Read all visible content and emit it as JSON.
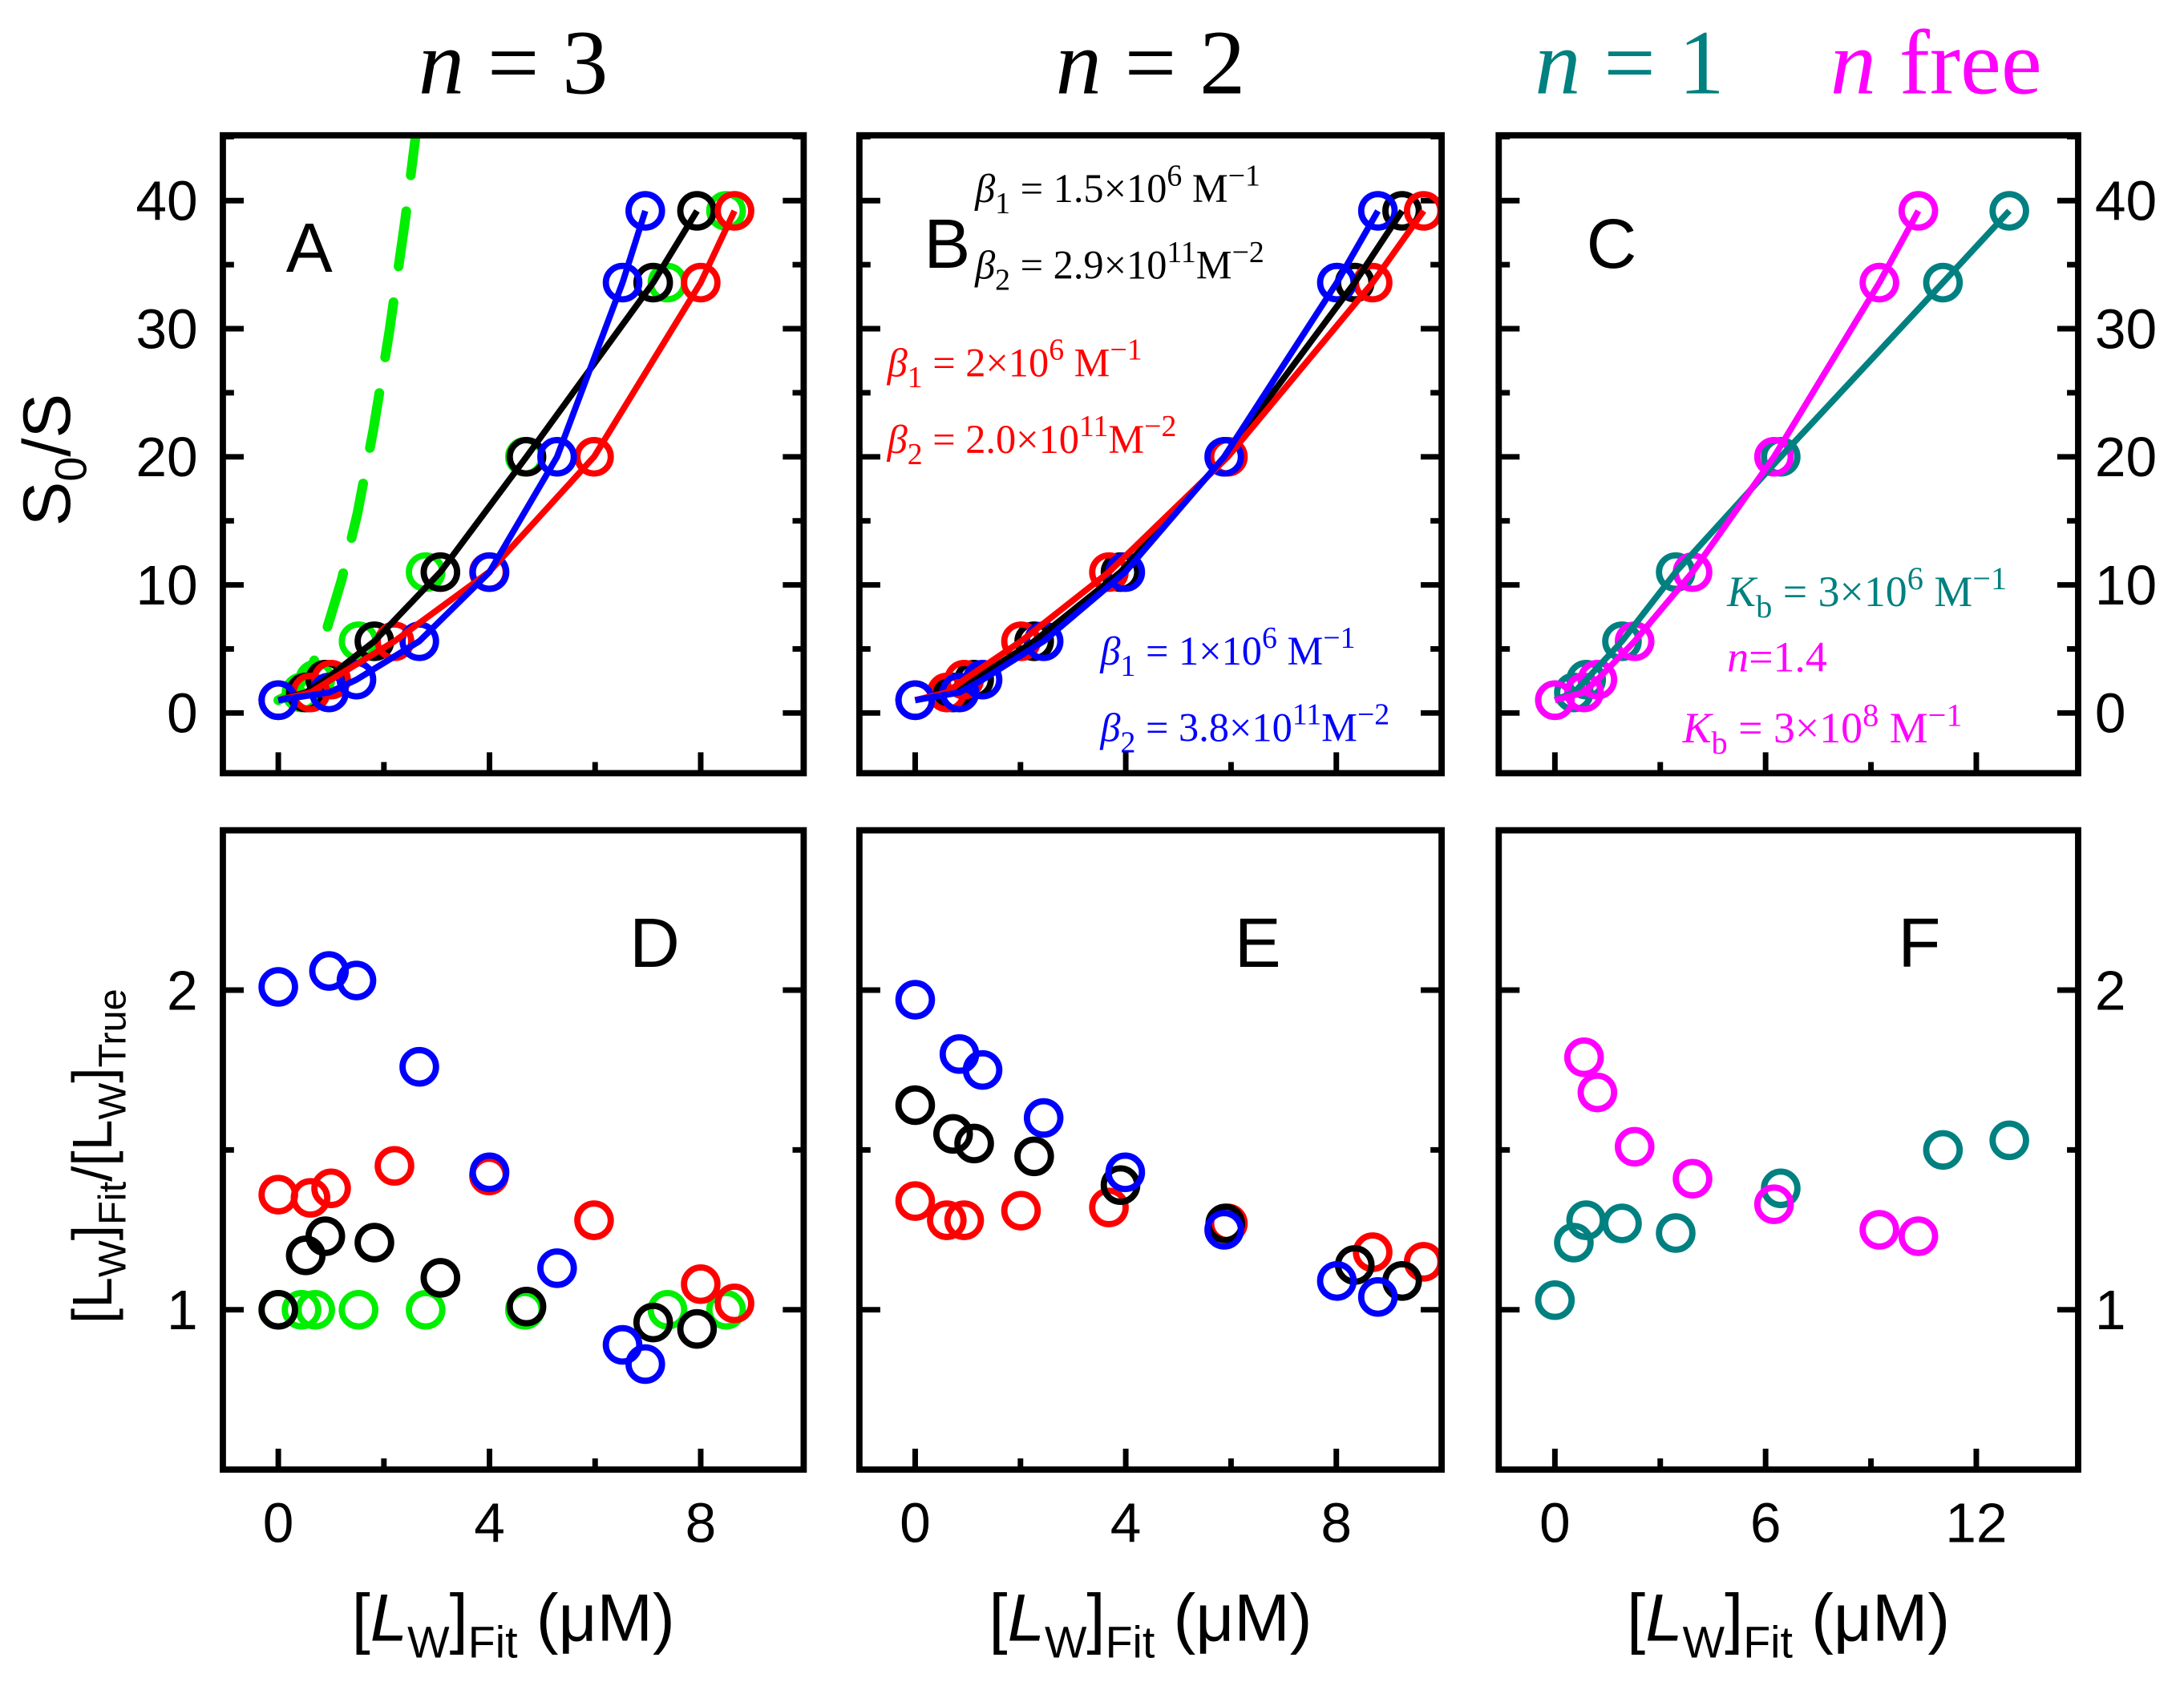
{
  "chart_data": [
    {
      "panel": "A",
      "type": "line",
      "title": "n = 3",
      "title_color": "#000000",
      "ylabel": "S0/S",
      "xlabel": "",
      "xlim": [
        -1.05,
        9.95
      ],
      "ylim": [
        -4.7,
        45.1
      ],
      "yticks": [
        0,
        10,
        20,
        30,
        40
      ],
      "xticks": [
        0,
        4,
        8
      ],
      "ytick_side": "left",
      "series": [
        {
          "name": "green",
          "color": "#00ee00",
          "line": false,
          "x": [
            0,
            0.44,
            0.7,
            1.52,
            2.79,
            4.67,
            7.37,
            8.48
          ],
          "y": [
            1,
            1.6,
            2.6,
            5.6,
            11,
            20,
            33.6,
            39.2
          ]
        },
        {
          "name": "black",
          "color": "#000000",
          "line": true,
          "x": [
            0,
            0.52,
            0.89,
            1.82,
            3.07,
            4.7,
            7.1,
            7.93
          ],
          "y": [
            1,
            1.6,
            2.6,
            5.6,
            11,
            20,
            33.6,
            39.2
          ]
        },
        {
          "name": "red",
          "color": "#ff0000",
          "line": true,
          "x": [
            0,
            0.61,
            1.0,
            2.2,
            3.99,
            5.98,
            8.0,
            8.64
          ],
          "y": [
            1,
            1.6,
            2.6,
            5.6,
            11,
            20,
            33.6,
            39.2
          ]
        },
        {
          "name": "blue",
          "color": "#0000ff",
          "line": true,
          "x": [
            0,
            0.96,
            1.48,
            2.67,
            4.0,
            5.28,
            6.52,
            6.95
          ],
          "y": [
            1,
            1.6,
            2.6,
            5.6,
            11,
            20,
            33.6,
            39.2
          ]
        }
      ],
      "dashed_curve": {
        "color": "#00ee00",
        "x": [
          0,
          0.3,
          0.6,
          0.9,
          1.2,
          1.5,
          1.8,
          2.1,
          2.4,
          2.63
        ],
        "y": [
          1,
          1.6,
          3.3,
          6.3,
          10.4,
          15.6,
          22.1,
          29.7,
          38.4,
          46
        ]
      },
      "annotations": []
    },
    {
      "panel": "B",
      "type": "line",
      "title": "n = 2",
      "title_color": "#000000",
      "xlim": [
        -1.06,
        10.0
      ],
      "ylim": [
        -4.7,
        45.1
      ],
      "yticks": [
        0,
        10,
        20,
        30,
        40
      ],
      "xticks": [
        0,
        4,
        8
      ],
      "ytick_side": "none",
      "series": [
        {
          "name": "black",
          "color": "#000000",
          "line": true,
          "x": [
            0,
            0.72,
            1.12,
            2.26,
            3.9,
            5.89,
            8.35,
            9.25
          ],
          "y": [
            1,
            1.6,
            2.6,
            5.6,
            11,
            20,
            33.6,
            39.2
          ]
        },
        {
          "name": "red",
          "color": "#ff0000",
          "line": true,
          "x": [
            0,
            0.6,
            0.93,
            2.01,
            3.68,
            5.94,
            8.69,
            9.66
          ],
          "y": [
            1,
            1.6,
            2.6,
            5.6,
            11,
            20,
            33.6,
            39.2
          ]
        },
        {
          "name": "blue",
          "color": "#0000ff",
          "line": true,
          "x": [
            0,
            0.84,
            1.28,
            2.44,
            3.99,
            5.87,
            8.01,
            8.79
          ],
          "y": [
            1,
            1.6,
            2.6,
            5.6,
            11,
            20,
            33.6,
            39.2
          ]
        }
      ],
      "annotations": [
        {
          "color": "#000000",
          "sym": "β",
          "sub": "1",
          "text": " = 1.5×10",
          "sup": "6",
          "unit": " M",
          "unit_sup": "−1"
        },
        {
          "color": "#000000",
          "sym": "β",
          "sub": "2",
          "text": " = 2.9×10",
          "sup": "11",
          "unit": "M",
          "unit_sup": "−2"
        },
        {
          "color": "#ff0000",
          "sym": "β",
          "sub": "1",
          "text": " = 2×10",
          "sup": "6",
          "unit": " M",
          "unit_sup": "−1"
        },
        {
          "color": "#ff0000",
          "sym": "β",
          "sub": "2",
          "text": " = 2.0×10",
          "sup": "11",
          "unit": "M",
          "unit_sup": "−2"
        },
        {
          "color": "#0000ff",
          "sym": "β",
          "sub": "1",
          "text": " = 1×10",
          "sup": "6",
          "unit": " M",
          "unit_sup": "−1"
        },
        {
          "color": "#0000ff",
          "sym": "β",
          "sub": "2",
          "text": " = 3.8×10",
          "sup": "11",
          "unit": "M",
          "unit_sup": "−2"
        }
      ]
    },
    {
      "panel": "C",
      "type": "line",
      "title": "n = 1",
      "title_color": "#008080",
      "title2": "n free",
      "title2_color": "#ff00ff",
      "xlim": [
        -1.6,
        14.9
      ],
      "ylim": [
        -4.7,
        45.1
      ],
      "yticks": [
        0,
        10,
        20,
        30,
        40
      ],
      "xticks": [
        0,
        6,
        12
      ],
      "ytick_side": "right",
      "series": [
        {
          "name": "teal",
          "color": "#008080",
          "line": true,
          "x": [
            0,
            0.54,
            0.89,
            1.91,
            3.44,
            6.43,
            11.05,
            12.94
          ],
          "y": [
            1,
            1.6,
            2.6,
            5.6,
            11,
            20,
            33.6,
            39.2
          ]
        },
        {
          "name": "magenta",
          "color": "#ff00ff",
          "line": true,
          "x": [
            0,
            0.83,
            1.21,
            2.27,
            3.92,
            6.24,
            9.24,
            10.35
          ],
          "y": [
            1,
            1.6,
            2.6,
            5.6,
            11,
            20,
            33.6,
            39.2
          ]
        }
      ],
      "annotations": [
        {
          "color": "#008080",
          "sym": "K",
          "sub": "b",
          "text": " = 3×10",
          "sup": "6",
          "unit": " M",
          "unit_sup": "−1"
        },
        {
          "color": "#ff00ff",
          "sym": "n",
          "sub": "",
          "text": "=1.4",
          "sup": "",
          "unit": "",
          "unit_sup": ""
        },
        {
          "color": "#ff00ff",
          "sym": "K",
          "sub": "b",
          "text": " = 3×10",
          "sup": "8",
          "unit": " M",
          "unit_sup": "−1"
        }
      ]
    },
    {
      "panel": "D",
      "type": "scatter",
      "ylabel": "[LW]Fit/[LW]True",
      "xlabel": "[LW]Fit (μM)",
      "xlim": [
        -1.05,
        9.95
      ],
      "ylim": [
        0.5,
        2.5
      ],
      "yticks": [
        1,
        2
      ],
      "xticks": [
        0,
        4,
        8
      ],
      "ytick_side": "left",
      "series": [
        {
          "name": "green",
          "color": "#00ee00",
          "x": [
            0,
            0.44,
            0.7,
            1.52,
            2.79,
            4.67,
            7.37,
            8.48
          ],
          "y": [
            1,
            1,
            1,
            1,
            1,
            1,
            1,
            1
          ]
        },
        {
          "name": "red",
          "color": "#ff0000",
          "x": [
            0,
            0.61,
            1.0,
            2.2,
            3.99,
            5.98,
            8.0,
            8.64
          ],
          "y": [
            1.36,
            1.35,
            1.38,
            1.45,
            1.42,
            1.28,
            1.08,
            1.02
          ]
        },
        {
          "name": "black",
          "color": "#000000",
          "x": [
            0,
            0.52,
            0.89,
            1.82,
            3.07,
            4.7,
            7.1,
            7.93
          ],
          "y": [
            1.0,
            1.17,
            1.23,
            1.21,
            1.1,
            1.01,
            0.96,
            0.94
          ]
        },
        {
          "name": "blue",
          "color": "#0000ff",
          "x": [
            0,
            0.96,
            1.48,
            2.67,
            4.0,
            5.28,
            6.52,
            6.95
          ],
          "y": [
            2.01,
            2.06,
            2.03,
            1.76,
            1.43,
            1.13,
            0.89,
            0.83
          ]
        }
      ]
    },
    {
      "panel": "E",
      "type": "scatter",
      "xlabel": "[LW]Fit (μM)",
      "xlim": [
        -1.06,
        10.0
      ],
      "ylim": [
        0.5,
        2.5
      ],
      "yticks": [
        1,
        2
      ],
      "xticks": [
        0,
        4,
        8
      ],
      "ytick_side": "none",
      "series": [
        {
          "name": "red",
          "color": "#ff0000",
          "x": [
            0,
            0.6,
            0.93,
            2.01,
            3.68,
            5.94,
            8.69,
            9.66
          ],
          "y": [
            1.34,
            1.28,
            1.28,
            1.31,
            1.32,
            1.27,
            1.18,
            1.15
          ]
        },
        {
          "name": "black",
          "color": "#000000",
          "x": [
            0,
            0.72,
            1.12,
            2.26,
            3.9,
            5.89,
            8.35,
            9.25
          ],
          "y": [
            1.64,
            1.55,
            1.52,
            1.48,
            1.39,
            1.27,
            1.14,
            1.09
          ]
        },
        {
          "name": "blue",
          "color": "#0000ff",
          "x": [
            0,
            0.84,
            1.28,
            2.44,
            3.99,
            5.87,
            8.01,
            8.79
          ],
          "y": [
            1.97,
            1.8,
            1.75,
            1.6,
            1.43,
            1.25,
            1.09,
            1.04
          ]
        }
      ]
    },
    {
      "panel": "F",
      "type": "scatter",
      "xlabel": "[LW]Fit (μM)",
      "xlim": [
        -1.6,
        14.9
      ],
      "ylim": [
        0.5,
        2.5
      ],
      "yticks": [
        1,
        2
      ],
      "xticks": [
        0,
        6,
        12
      ],
      "ytick_side": "right",
      "series": [
        {
          "name": "teal",
          "color": "#008080",
          "x": [
            0,
            0.54,
            0.89,
            1.91,
            3.44,
            6.43,
            11.05,
            12.94
          ],
          "y": [
            1.03,
            1.21,
            1.28,
            1.27,
            1.24,
            1.38,
            1.5,
            1.53
          ]
        },
        {
          "name": "magenta",
          "color": "#ff00ff",
          "x": [
            0,
            0.83,
            1.21,
            2.27,
            3.92,
            6.24,
            9.24,
            10.35
          ],
          "y": [
            null,
            1.79,
            1.68,
            1.51,
            1.41,
            1.33,
            1.25,
            1.23
          ]
        }
      ]
    }
  ],
  "labels": {
    "ylabel_top": {
      "main": "S",
      "sub": "0",
      "rest": "/S"
    },
    "ylabel_bottom": {
      "p1": "[L",
      "s1": "W",
      "p2": "]",
      "s2": "Fit",
      "p3": "/[L",
      "s3": "W",
      "p4": "]",
      "s4": "True"
    },
    "xlabel": {
      "p1": "[",
      "italic": "L",
      "s1": "W",
      "p2": "]",
      "s2": "Fit",
      "p3": " (μM)"
    }
  }
}
